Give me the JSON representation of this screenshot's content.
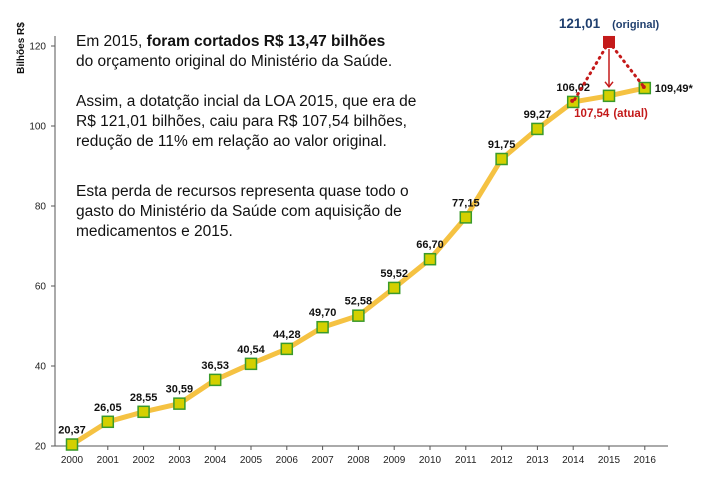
{
  "text_block": {
    "p1_pre": "Em 2015, ",
    "p1_bold": "foram cortados R$ 13,47 bilhões",
    "p1_post": "do orçamento original do Ministério da Saúde.",
    "p2": "Assim, a dotatção incial da LOA 2015, que era de R$ 121,01 bilhões, caiu para R$ 107,54 bilhões, redução de 11%  em relação ao valor original.",
    "p3": "Esta perda de recursos representa quase todo o gasto do Ministério da Saúde com aquisição de medicamentos e 2015."
  },
  "chart_data": {
    "type": "line",
    "ylabel": "Bilhões R$",
    "ylim": [
      20,
      120
    ],
    "yticks": [
      20,
      40,
      60,
      80,
      100,
      120
    ],
    "categories": [
      "2000",
      "2001",
      "2002",
      "2003",
      "2004",
      "2005",
      "2006",
      "2007",
      "2008",
      "2009",
      "2010",
      "2011",
      "2012",
      "2013",
      "2014",
      "2015",
      "2016"
    ],
    "values": [
      20.37,
      26.05,
      28.55,
      30.59,
      36.53,
      40.54,
      44.28,
      49.7,
      52.58,
      59.52,
      66.7,
      77.15,
      91.75,
      99.27,
      106.02,
      107.54,
      109.49
    ],
    "data_labels": [
      "20,37",
      "26,05",
      "28,55",
      "30,59",
      "36,53",
      "40,54",
      "44,28",
      "49,70",
      "52,58",
      "59,52",
      "66,70",
      "77,15",
      "91,75",
      "99,27",
      "106,02",
      "",
      ""
    ],
    "annotation_2016": "109,49*",
    "original_2015": {
      "value": 121.01,
      "value_label": "121,01",
      "tag": "(original)"
    },
    "actual_2015": {
      "value_label": "107,54",
      "tag": "(atual)"
    },
    "colors": {
      "line": "#f5c242",
      "marker_fill": "#d4d000",
      "marker_stroke": "#3a9a2a",
      "red": "#c41a1a",
      "original_label": "#1f3f6e",
      "actual_label": "#c41a1a"
    },
    "grid": false
  }
}
